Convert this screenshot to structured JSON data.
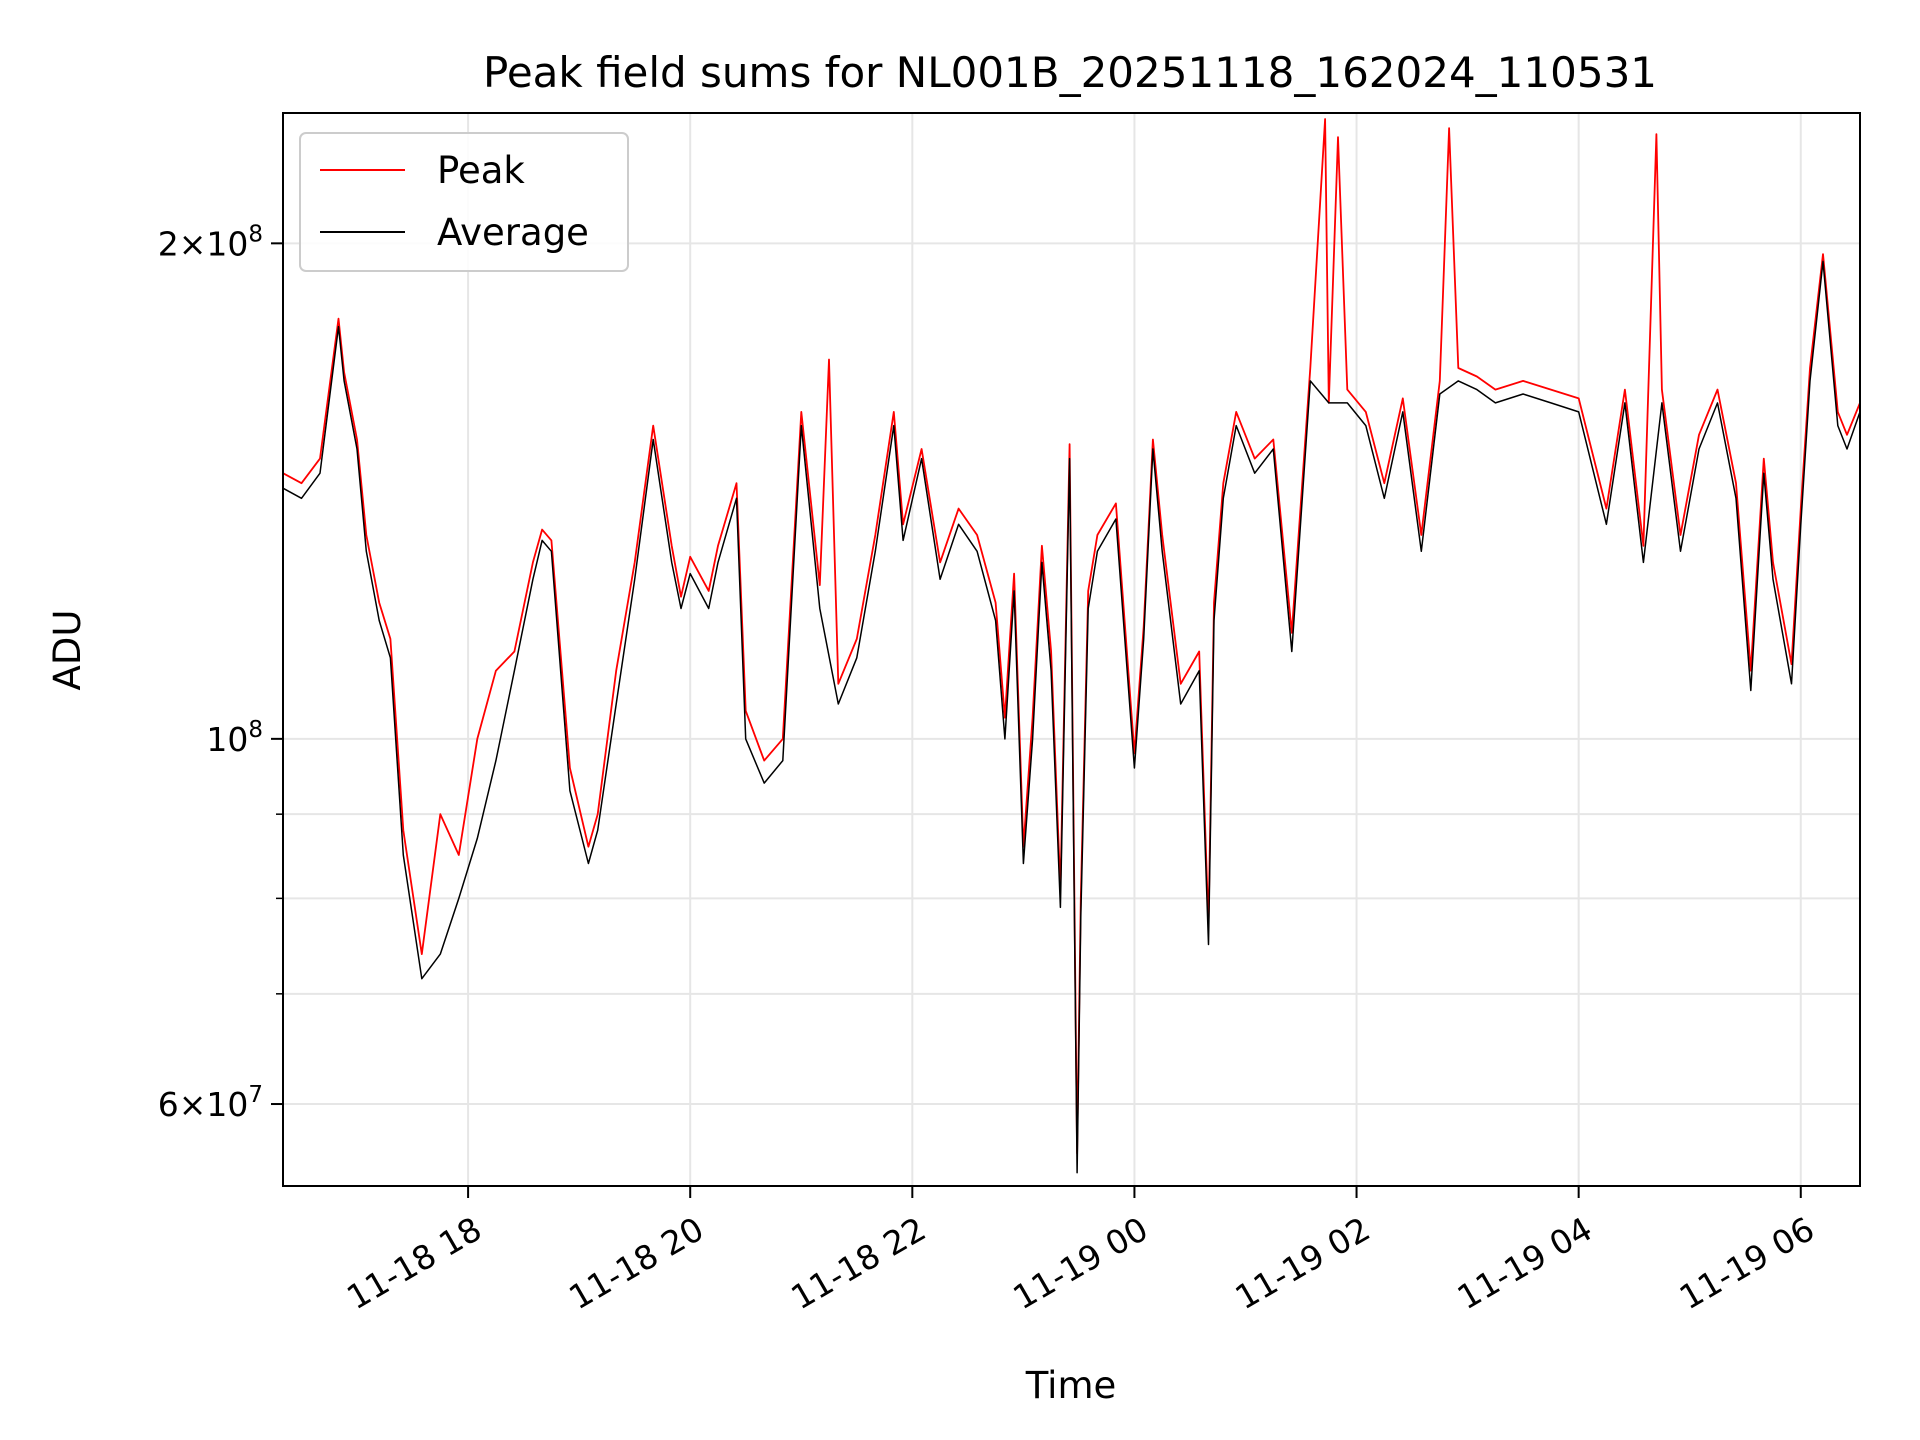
{
  "chart_data": {
    "type": "line",
    "title": "Peak field sums for NL001B_20251118_162024_110531",
    "xlabel": "Time",
    "ylabel": "ADU",
    "yscale": "log",
    "grid": true,
    "legend_position": "upper-left",
    "x_range": [
      "2025-11-18 16:20",
      "2025-11-19 06:32"
    ],
    "ylim": [
      53500000,
      240000000
    ],
    "x_ticks": [
      {
        "value": "2025-11-18 18:00",
        "label": "11-18 18"
      },
      {
        "value": "2025-11-18 20:00",
        "label": "11-18 20"
      },
      {
        "value": "2025-11-18 22:00",
        "label": "11-18 22"
      },
      {
        "value": "2025-11-19 00:00",
        "label": "11-19 00"
      },
      {
        "value": "2025-11-19 02:00",
        "label": "11-19 02"
      },
      {
        "value": "2025-11-19 04:00",
        "label": "11-19 04"
      },
      {
        "value": "2025-11-19 06:00",
        "label": "11-19 06"
      }
    ],
    "y_ticks": [
      {
        "value": 60000000,
        "mantissa": "6",
        "exponent": "7"
      },
      {
        "value": 100000000,
        "mantissa": "",
        "exponent": "8"
      },
      {
        "value": 200000000,
        "mantissa": "2",
        "exponent": "8"
      }
    ],
    "y_minor_ticks": [
      70000000,
      80000000,
      90000000
    ],
    "series": [
      {
        "name": "Average",
        "color": "#000000",
        "x": [
          "2025-11-18 16:20",
          "2025-11-18 16:30",
          "2025-11-18 16:40",
          "2025-11-18 16:50",
          "2025-11-18 16:53",
          "2025-11-18 17:00",
          "2025-11-18 17:05",
          "2025-11-18 17:12",
          "2025-11-18 17:18",
          "2025-11-18 17:25",
          "2025-11-18 17:35",
          "2025-11-18 17:45",
          "2025-11-18 17:55",
          "2025-11-18 18:05",
          "2025-11-18 18:15",
          "2025-11-18 18:25",
          "2025-11-18 18:35",
          "2025-11-18 18:40",
          "2025-11-18 18:45",
          "2025-11-18 18:55",
          "2025-11-18 19:05",
          "2025-11-18 19:10",
          "2025-11-18 19:20",
          "2025-11-18 19:30",
          "2025-11-18 19:40",
          "2025-11-18 19:50",
          "2025-11-18 19:55",
          "2025-11-18 20:00",
          "2025-11-18 20:10",
          "2025-11-18 20:15",
          "2025-11-18 20:25",
          "2025-11-18 20:30",
          "2025-11-18 20:40",
          "2025-11-18 20:50",
          "2025-11-18 21:00",
          "2025-11-18 21:10",
          "2025-11-18 21:20",
          "2025-11-18 21:30",
          "2025-11-18 21:40",
          "2025-11-18 21:50",
          "2025-11-18 21:55",
          "2025-11-18 22:05",
          "2025-11-18 22:15",
          "2025-11-18 22:25",
          "2025-11-18 22:35",
          "2025-11-18 22:45",
          "2025-11-18 22:50",
          "2025-11-18 22:55",
          "2025-11-18 23:00",
          "2025-11-18 23:05",
          "2025-11-18 23:10",
          "2025-11-18 23:15",
          "2025-11-18 23:20",
          "2025-11-18 23:25",
          "2025-11-18 23:29",
          "2025-11-18 23:31",
          "2025-11-18 23:35",
          "2025-11-18 23:40",
          "2025-11-18 23:50",
          "2025-11-19 00:00",
          "2025-11-19 00:05",
          "2025-11-19 00:10",
          "2025-11-19 00:15",
          "2025-11-19 00:25",
          "2025-11-19 00:35",
          "2025-11-19 00:40",
          "2025-11-19 00:43",
          "2025-11-19 00:48",
          "2025-11-19 00:55",
          "2025-11-19 01:05",
          "2025-11-19 01:15",
          "2025-11-19 01:25",
          "2025-11-19 01:35",
          "2025-11-19 01:45",
          "2025-11-19 01:55",
          "2025-11-19 02:05",
          "2025-11-19 02:15",
          "2025-11-19 02:25",
          "2025-11-19 02:35",
          "2025-11-19 02:45",
          "2025-11-19 02:55",
          "2025-11-19 03:05",
          "2025-11-19 03:15",
          "2025-11-19 03:30",
          "2025-11-19 03:45",
          "2025-11-19 04:00",
          "2025-11-19 04:15",
          "2025-11-19 04:25",
          "2025-11-19 04:35",
          "2025-11-19 04:45",
          "2025-11-19 04:55",
          "2025-11-19 05:05",
          "2025-11-19 05:15",
          "2025-11-19 05:25",
          "2025-11-19 05:33",
          "2025-11-19 05:40",
          "2025-11-19 05:45",
          "2025-11-19 05:55",
          "2025-11-19 06:00",
          "2025-11-19 06:05",
          "2025-11-19 06:12",
          "2025-11-19 06:20",
          "2025-11-19 06:25",
          "2025-11-19 06:32"
        ],
        "y": [
          142000000,
          140000000,
          145000000,
          178000000,
          165000000,
          150000000,
          130000000,
          118000000,
          112000000,
          85000000,
          71500000,
          74000000,
          80000000,
          87000000,
          97000000,
          110000000,
          125000000,
          132000000,
          130000000,
          93000000,
          84000000,
          88000000,
          105000000,
          125000000,
          152000000,
          128000000,
          120000000,
          126000000,
          120000000,
          128000000,
          140000000,
          100000000,
          94000000,
          97000000,
          155000000,
          120000000,
          105000000,
          112000000,
          130000000,
          155000000,
          132000000,
          148000000,
          125000000,
          135000000,
          130000000,
          118000000,
          100000000,
          123000000,
          84000000,
          100000000,
          128000000,
          110000000,
          79000000,
          148000000,
          54500000,
          78000000,
          120000000,
          130000000,
          136000000,
          96000000,
          115000000,
          150000000,
          130000000,
          105000000,
          110000000,
          75000000,
          118000000,
          140000000,
          155000000,
          145000000,
          150000000,
          113000000,
          165000000,
          160000000,
          160000000,
          155000000,
          140000000,
          158000000,
          130000000,
          162000000,
          165000000,
          163000000,
          160000000,
          162000000,
          160000000,
          158000000,
          135000000,
          160000000,
          128000000,
          160000000,
          130000000,
          150000000,
          160000000,
          140000000,
          107000000,
          145000000,
          125000000,
          108000000,
          135000000,
          165000000,
          195000000,
          155000000,
          150000000,
          158000000
        ]
      },
      {
        "name": "Peak",
        "color": "#ff0000",
        "x": [
          "2025-11-18 16:20",
          "2025-11-18 16:30",
          "2025-11-18 16:40",
          "2025-11-18 16:50",
          "2025-11-18 16:53",
          "2025-11-18 17:00",
          "2025-11-18 17:05",
          "2025-11-18 17:12",
          "2025-11-18 17:18",
          "2025-11-18 17:25",
          "2025-11-18 17:35",
          "2025-11-18 17:45",
          "2025-11-18 17:55",
          "2025-11-18 18:05",
          "2025-11-18 18:15",
          "2025-11-18 18:25",
          "2025-11-18 18:35",
          "2025-11-18 18:40",
          "2025-11-18 18:45",
          "2025-11-18 18:55",
          "2025-11-18 19:05",
          "2025-11-18 19:10",
          "2025-11-18 19:20",
          "2025-11-18 19:30",
          "2025-11-18 19:40",
          "2025-11-18 19:50",
          "2025-11-18 19:55",
          "2025-11-18 20:00",
          "2025-11-18 20:10",
          "2025-11-18 20:15",
          "2025-11-18 20:25",
          "2025-11-18 20:30",
          "2025-11-18 20:40",
          "2025-11-18 20:50",
          "2025-11-18 21:00",
          "2025-11-18 21:10",
          "2025-11-18 21:15",
          "2025-11-18 21:20",
          "2025-11-18 21:30",
          "2025-11-18 21:40",
          "2025-11-18 21:50",
          "2025-11-18 21:55",
          "2025-11-18 22:05",
          "2025-11-18 22:15",
          "2025-11-18 22:25",
          "2025-11-18 22:35",
          "2025-11-18 22:45",
          "2025-11-18 22:50",
          "2025-11-18 22:55",
          "2025-11-18 23:00",
          "2025-11-18 23:05",
          "2025-11-18 23:10",
          "2025-11-18 23:15",
          "2025-11-18 23:20",
          "2025-11-18 23:25",
          "2025-11-18 23:29",
          "2025-11-18 23:31",
          "2025-11-18 23:35",
          "2025-11-18 23:40",
          "2025-11-18 23:50",
          "2025-11-19 00:00",
          "2025-11-19 00:05",
          "2025-11-19 00:10",
          "2025-11-19 00:15",
          "2025-11-19 00:25",
          "2025-11-19 00:35",
          "2025-11-19 00:40",
          "2025-11-19 00:43",
          "2025-11-19 00:48",
          "2025-11-19 00:55",
          "2025-11-19 01:05",
          "2025-11-19 01:15",
          "2025-11-19 01:25",
          "2025-11-19 01:35",
          "2025-11-19 01:43",
          "2025-11-19 01:45",
          "2025-11-19 01:50",
          "2025-11-19 01:55",
          "2025-11-19 02:05",
          "2025-11-19 02:15",
          "2025-11-19 02:25",
          "2025-11-19 02:35",
          "2025-11-19 02:45",
          "2025-11-19 02:50",
          "2025-11-19 02:55",
          "2025-11-19 03:05",
          "2025-11-19 03:15",
          "2025-11-19 03:30",
          "2025-11-19 03:45",
          "2025-11-19 04:00",
          "2025-11-19 04:15",
          "2025-11-19 04:25",
          "2025-11-19 04:35",
          "2025-11-19 04:42",
          "2025-11-19 04:45",
          "2025-11-19 04:55",
          "2025-11-19 05:05",
          "2025-11-19 05:15",
          "2025-11-19 05:25",
          "2025-11-19 05:33",
          "2025-11-19 05:40",
          "2025-11-19 05:45",
          "2025-11-19 05:55",
          "2025-11-19 06:00",
          "2025-11-19 06:05",
          "2025-11-19 06:12",
          "2025-11-19 06:20",
          "2025-11-19 06:25",
          "2025-11-19 06:32"
        ],
        "y": [
          145000000,
          143000000,
          148000000,
          180000000,
          167000000,
          152000000,
          133000000,
          121000000,
          115000000,
          88000000,
          74000000,
          90000000,
          85000000,
          100000000,
          110000000,
          113000000,
          128000000,
          134000000,
          132000000,
          96000000,
          86000000,
          90000000,
          110000000,
          128000000,
          155000000,
          131000000,
          122000000,
          129000000,
          123000000,
          131000000,
          143000000,
          104000000,
          97000000,
          100000000,
          158000000,
          124000000,
          170000000,
          108000000,
          115000000,
          133000000,
          158000000,
          135000000,
          150000000,
          128000000,
          138000000,
          133000000,
          121000000,
          103000000,
          126000000,
          86000000,
          103000000,
          131000000,
          113000000,
          81000000,
          151000000,
          56000000,
          80000000,
          123000000,
          133000000,
          139000000,
          98000000,
          117000000,
          152000000,
          133000000,
          108000000,
          113000000,
          77000000,
          121000000,
          143000000,
          158000000,
          148000000,
          152000000,
          116000000,
          168000000,
          238000000,
          160000000,
          232000000,
          163000000,
          158000000,
          143000000,
          161000000,
          133000000,
          165000000,
          235000000,
          168000000,
          166000000,
          163000000,
          165000000,
          163000000,
          161000000,
          138000000,
          163000000,
          131000000,
          233000000,
          163000000,
          133000000,
          153000000,
          163000000,
          143000000,
          110000000,
          148000000,
          128000000,
          111000000,
          138000000,
          168000000,
          197000000,
          158000000,
          153000000,
          160000000
        ]
      }
    ]
  }
}
